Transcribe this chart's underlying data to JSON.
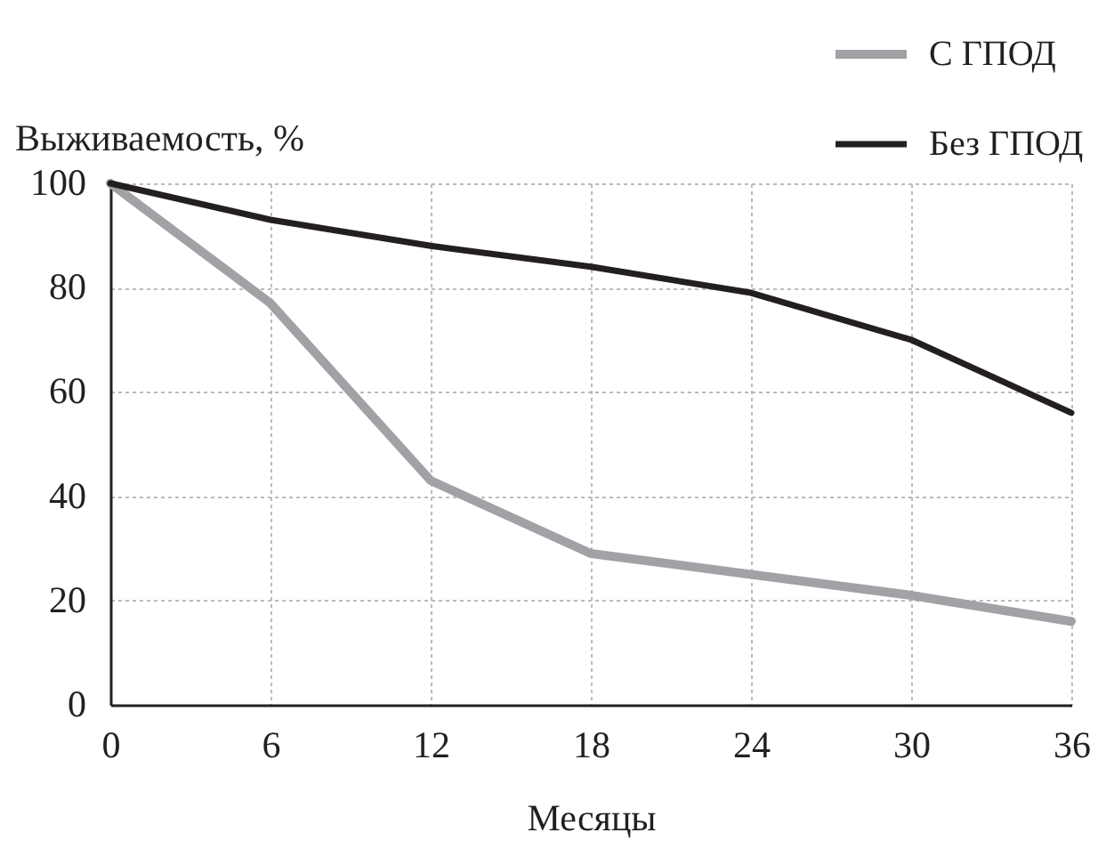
{
  "chart_data": {
    "type": "line",
    "xlabel": "Месяцы",
    "ylabel": "Выживаемость, %",
    "x": [
      0,
      6,
      12,
      18,
      24,
      30,
      36
    ],
    "series": [
      {
        "name": "С ГПОД",
        "color": "#a0a2a5",
        "values": [
          100,
          77,
          43,
          29,
          25,
          21,
          16
        ]
      },
      {
        "name": "Без ГПОД",
        "color": "#231f20",
        "values": [
          100,
          93,
          88,
          84,
          79,
          70,
          56
        ]
      }
    ],
    "xlim": [
      0,
      36
    ],
    "xticks": [
      0,
      6,
      12,
      18,
      24,
      30,
      36
    ],
    "ylim": [
      0,
      100
    ],
    "yticks": [
      0,
      20,
      40,
      60,
      80,
      100
    ],
    "grid": true,
    "legend": "top right",
    "line_style": "solid"
  }
}
